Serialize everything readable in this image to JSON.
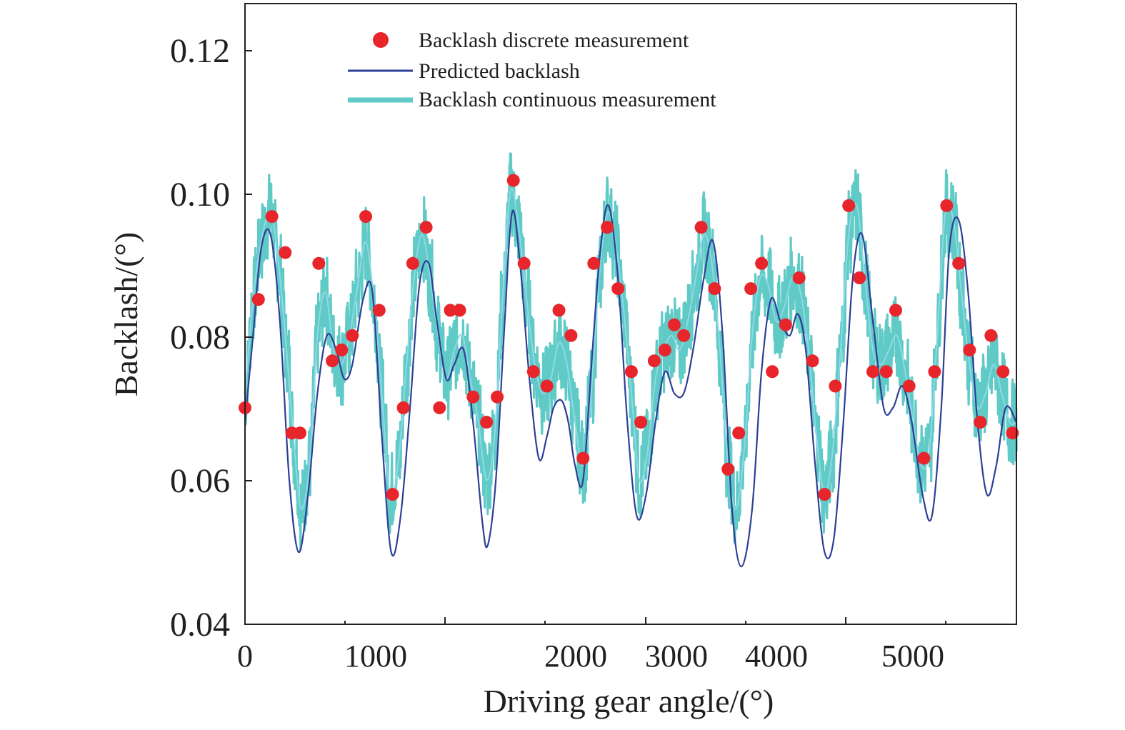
{
  "chart_data": {
    "type": "line",
    "title": "",
    "xlabel": "Driving gear angle/(°)",
    "ylabel": "Backlash/(°)",
    "xlim": [
      0,
      5750
    ],
    "ylim": [
      0.04,
      0.126
    ],
    "x_ticks": [
      0,
      1000,
      2000,
      3000,
      4000,
      5000
    ],
    "y_ticks": [
      0.04,
      0.06,
      0.08,
      0.1,
      0.12
    ],
    "x_tick_labels": [
      "0",
      "1000",
      "2000",
      "3000",
      "4000",
      "5000"
    ],
    "y_tick_labels": [
      "0.04",
      "0.06",
      "0.08",
      "0.10",
      "0.12"
    ],
    "grid": false,
    "legend_position": "top-center",
    "colors": {
      "discrete": "#e8252b",
      "predicted": "#2e3f96",
      "continuous": "#5fcac6"
    },
    "series": [
      {
        "name": "Backlash discrete measurement",
        "kind": "scatter",
        "x": [
          0,
          100,
          200,
          300,
          350,
          410,
          550,
          650,
          720,
          800,
          900,
          1000,
          1100,
          1180,
          1250,
          1350,
          1450,
          1530,
          1600,
          1700,
          1800,
          1880,
          2000,
          2080,
          2150,
          2250,
          2340,
          2430,
          2520,
          2600,
          2700,
          2780,
          2880,
          2950,
          3050,
          3130,
          3200,
          3270,
          3400,
          3500,
          3600,
          3680,
          3770,
          3850,
          3930,
          4030,
          4130,
          4230,
          4320,
          4400,
          4500,
          4580,
          4680,
          4780,
          4850,
          4950,
          5060,
          5140,
          5230,
          5320,
          5400,
          5480,
          5560,
          5650,
          5720
        ],
        "y": [
          0.07,
          0.085,
          0.0965,
          0.0915,
          0.0665,
          0.0665,
          0.09,
          0.0765,
          0.078,
          0.08,
          0.0965,
          0.0835,
          0.058,
          0.07,
          0.09,
          0.095,
          0.07,
          0.0835,
          0.0835,
          0.0715,
          0.068,
          0.0715,
          0.1015,
          0.09,
          0.075,
          0.073,
          0.0835,
          0.08,
          0.063,
          0.09,
          0.095,
          0.0865,
          0.075,
          0.068,
          0.0765,
          0.078,
          0.0815,
          0.08,
          0.095,
          0.0865,
          0.0615,
          0.0665,
          0.0865,
          0.09,
          0.075,
          0.0815,
          0.088,
          0.0765,
          0.058,
          0.073,
          0.098,
          0.088,
          0.075,
          0.075,
          0.0835,
          0.073,
          0.063,
          0.075,
          0.098,
          0.09,
          0.078,
          0.068,
          0.08,
          0.075,
          0.0665
        ]
      },
      {
        "name": "Predicted backlash",
        "kind": "line",
        "x": [
          0,
          60,
          120,
          190,
          260,
          330,
          400,
          470,
          540,
          610,
          680,
          740,
          800,
          880,
          950,
          1020,
          1090,
          1160,
          1230,
          1300,
          1370,
          1430,
          1500,
          1560,
          1630,
          1700,
          1770,
          1810,
          1870,
          1930,
          1990,
          2050,
          2120,
          2190,
          2250,
          2300,
          2360,
          2410,
          2460,
          2520,
          2590,
          2650,
          2710,
          2780,
          2850,
          2920,
          2990,
          3060,
          3130,
          3200,
          3270,
          3340,
          3420,
          3490,
          3560,
          3630,
          3700,
          3780,
          3850,
          3920,
          3990,
          4060,
          4120,
          4180,
          4250,
          4320,
          4390,
          4460,
          4530,
          4600,
          4680,
          4760,
          4830,
          4900,
          4970,
          5050,
          5120,
          5190,
          5250,
          5320,
          5390,
          5460,
          5530,
          5600,
          5670,
          5750
        ],
        "y": [
          0.068,
          0.08,
          0.092,
          0.094,
          0.082,
          0.06,
          0.05,
          0.058,
          0.072,
          0.08,
          0.078,
          0.074,
          0.076,
          0.085,
          0.086,
          0.066,
          0.05,
          0.055,
          0.07,
          0.087,
          0.09,
          0.082,
          0.074,
          0.076,
          0.078,
          0.068,
          0.054,
          0.051,
          0.06,
          0.08,
          0.097,
          0.09,
          0.074,
          0.063,
          0.066,
          0.07,
          0.071,
          0.068,
          0.062,
          0.06,
          0.078,
          0.092,
          0.098,
          0.088,
          0.068,
          0.055,
          0.058,
          0.068,
          0.075,
          0.072,
          0.072,
          0.078,
          0.088,
          0.093,
          0.08,
          0.056,
          0.048,
          0.056,
          0.075,
          0.085,
          0.082,
          0.08,
          0.083,
          0.078,
          0.062,
          0.05,
          0.052,
          0.068,
          0.088,
          0.094,
          0.082,
          0.07,
          0.07,
          0.073,
          0.068,
          0.058,
          0.055,
          0.07,
          0.092,
          0.096,
          0.086,
          0.068,
          0.058,
          0.062,
          0.07,
          0.068
        ]
      },
      {
        "name": "Backlash continuous measurement",
        "kind": "line",
        "x": [
          0,
          60,
          120,
          190,
          250,
          310,
          370,
          420,
          480,
          540,
          600,
          660,
          720,
          780,
          840,
          900,
          960,
          1020,
          1080,
          1140,
          1200,
          1260,
          1320,
          1380,
          1440,
          1500,
          1560,
          1620,
          1680,
          1740,
          1800,
          1860,
          1920,
          1980,
          2040,
          2100,
          2160,
          2220,
          2280,
          2340,
          2400,
          2460,
          2520,
          2580,
          2640,
          2700,
          2760,
          2820,
          2880,
          2940,
          3000,
          3060,
          3120,
          3180,
          3240,
          3300,
          3360,
          3420,
          3480,
          3540,
          3600,
          3660,
          3720,
          3780,
          3840,
          3900,
          3960,
          4020,
          4080,
          4140,
          4200,
          4260,
          4320,
          4380,
          4440,
          4500,
          4560,
          4620,
          4680,
          4740,
          4800,
          4860,
          4920,
          4980,
          5040,
          5100,
          5160,
          5220,
          5280,
          5340,
          5400,
          5460,
          5520,
          5580,
          5640,
          5700,
          5750
        ],
        "y": [
          0.072,
          0.085,
          0.093,
          0.097,
          0.09,
          0.078,
          0.064,
          0.056,
          0.062,
          0.08,
          0.086,
          0.078,
          0.076,
          0.08,
          0.087,
          0.093,
          0.085,
          0.072,
          0.058,
          0.062,
          0.075,
          0.088,
          0.094,
          0.088,
          0.08,
          0.074,
          0.078,
          0.08,
          0.074,
          0.068,
          0.06,
          0.066,
          0.085,
          0.1,
          0.095,
          0.085,
          0.076,
          0.072,
          0.074,
          0.079,
          0.076,
          0.068,
          0.062,
          0.072,
          0.088,
          0.097,
          0.093,
          0.084,
          0.072,
          0.06,
          0.064,
          0.074,
          0.078,
          0.08,
          0.078,
          0.082,
          0.088,
          0.094,
          0.09,
          0.078,
          0.062,
          0.056,
          0.064,
          0.08,
          0.088,
          0.087,
          0.082,
          0.084,
          0.088,
          0.086,
          0.078,
          0.066,
          0.058,
          0.064,
          0.078,
          0.094,
          0.098,
          0.088,
          0.078,
          0.076,
          0.078,
          0.08,
          0.075,
          0.068,
          0.062,
          0.064,
          0.08,
          0.097,
          0.096,
          0.086,
          0.076,
          0.07,
          0.072,
          0.076,
          0.072,
          0.068,
          0.068
        ]
      }
    ]
  }
}
